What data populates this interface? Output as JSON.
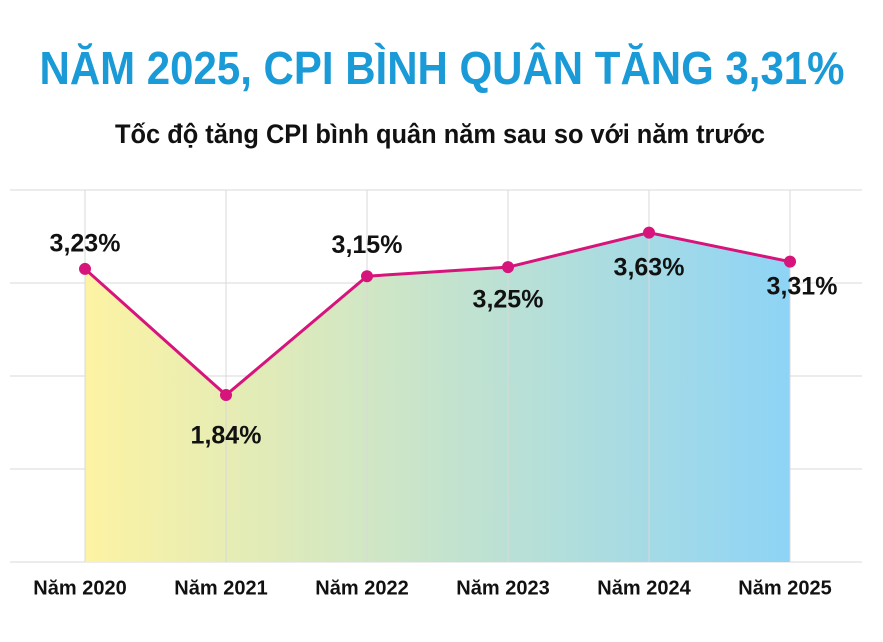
{
  "chart_data": {
    "type": "area",
    "title": "NĂM 2025, CPI BÌNH QUÂN TĂNG 3,31%",
    "subtitle": "Tốc độ tăng CPI bình quân năm sau so với năm trước",
    "categories": [
      "Năm 2020",
      "Năm 2021",
      "Năm 2022",
      "Năm 2023",
      "Năm 2024",
      "Năm 2025"
    ],
    "values": [
      3.23,
      1.84,
      3.15,
      3.25,
      3.63,
      3.31
    ],
    "value_labels": [
      "3,23%",
      "1,84%",
      "3,15%",
      "3,25%",
      "3,63%",
      "3,31%"
    ],
    "color": "#d6147c",
    "fill_gradient": [
      "#fdf3a3",
      "#8ed4f6"
    ],
    "title_color": "#1a9ad6",
    "ylim": [
      0,
      4.1
    ],
    "grid": true
  }
}
